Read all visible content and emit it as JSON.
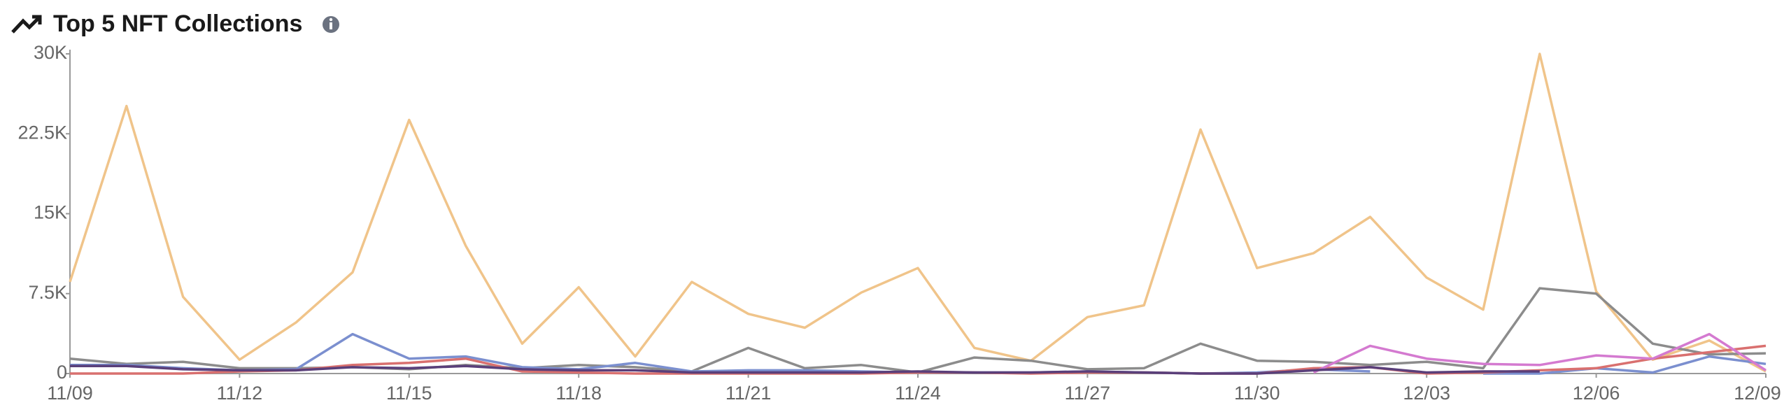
{
  "chart_data": {
    "type": "line",
    "title": "Top 5 NFT Collections",
    "categories": [
      "11/09",
      null,
      null,
      "11/12",
      null,
      null,
      "11/15",
      null,
      null,
      "11/18",
      null,
      null,
      "11/21",
      null,
      null,
      "11/24",
      null,
      null,
      "11/27",
      null,
      null,
      "11/30",
      null,
      null,
      "12/03",
      null,
      null,
      "12/06",
      null,
      null,
      "12/09"
    ],
    "series": [
      {
        "color": "#f0c48a",
        "values": [
          8600,
          25100,
          7200,
          1300,
          4800,
          9500,
          23800,
          12000,
          2800,
          8100,
          1600,
          8600,
          5600,
          4300,
          7600,
          9900,
          2400,
          1200,
          5300,
          6400,
          22900,
          9900,
          11300,
          14700,
          9000,
          6000,
          30000,
          7700,
          1300,
          3100,
          200
        ]
      },
      {
        "color": "#8c8c8c",
        "values": [
          1400,
          900,
          1100,
          500,
          500,
          600,
          400,
          800,
          500,
          800,
          600,
          200,
          2400,
          500,
          800,
          100,
          1500,
          1200,
          400,
          500,
          2800,
          1200,
          1100,
          800,
          1100,
          500,
          8000,
          7500,
          2800,
          1800,
          1900
        ]
      },
      {
        "color": "#7b8fcf",
        "values": [
          800,
          800,
          500,
          300,
          400,
          3700,
          1400,
          1600,
          600,
          400,
          1000,
          200,
          300,
          300,
          200,
          100,
          100,
          100,
          200,
          100,
          0,
          100,
          400,
          200,
          null,
          0,
          0,
          500,
          100,
          1600,
          900
        ]
      },
      {
        "color": "#d9706f",
        "values": [
          0,
          0,
          0,
          200,
          300,
          800,
          1000,
          1400,
          200,
          100,
          0,
          0,
          0,
          0,
          0,
          100,
          100,
          0,
          100,
          100,
          0,
          0,
          500,
          600,
          0,
          100,
          300,
          500,
          1400,
          2000,
          2600
        ]
      },
      {
        "color": "#d47ad0",
        "values": [
          null,
          null,
          null,
          null,
          null,
          null,
          null,
          null,
          null,
          null,
          null,
          null,
          null,
          null,
          null,
          null,
          null,
          null,
          null,
          null,
          null,
          null,
          100,
          2600,
          1400,
          900,
          800,
          1700,
          1400,
          3700,
          300
        ]
      },
      {
        "color": "#5a3f7a",
        "values": [
          700,
          700,
          400,
          300,
          300,
          600,
          500,
          700,
          400,
          300,
          300,
          100,
          100,
          100,
          100,
          200,
          100,
          100,
          200,
          100,
          0,
          0,
          300,
          600,
          100,
          200,
          200,
          null,
          null,
          null,
          null
        ]
      }
    ],
    "ylim": [
      0,
      30000
    ],
    "yticks": [
      0,
      {
        "value": 7500,
        "label": "7.5K"
      },
      {
        "value": 15000,
        "label": "15K"
      },
      {
        "value": 22500,
        "label": "22.5K"
      },
      {
        "value": 30000,
        "label": "30K"
      }
    ],
    "grid": false
  }
}
